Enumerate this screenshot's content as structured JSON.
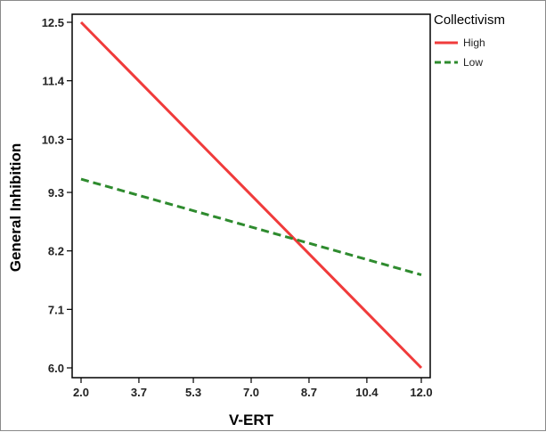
{
  "chart_data": {
    "type": "line",
    "xlabel": "V-ERT",
    "ylabel": "General Inhibition",
    "x_ticks": [
      "2.0",
      "3.7",
      "5.3",
      "7.0",
      "8.7",
      "10.4",
      "12.0"
    ],
    "y_ticks": [
      "12.5",
      "11.4",
      "10.3",
      "9.3",
      "8.2",
      "7.1",
      "6.0"
    ],
    "xlim": [
      2.0,
      12.0
    ],
    "ylim": [
      6.0,
      12.5
    ],
    "grid": false,
    "legend": {
      "title": "Collectivism",
      "placement": "top-right outside"
    },
    "series": [
      {
        "name": "High",
        "color": "#f03b3b",
        "dash": "solid",
        "x": [
          2.0,
          12.0
        ],
        "y": [
          12.5,
          6.0
        ]
      },
      {
        "name": "Low",
        "color": "#2e8b2e",
        "dash": "dashed",
        "x": [
          2.0,
          12.0
        ],
        "y": [
          9.55,
          7.75
        ]
      }
    ]
  }
}
